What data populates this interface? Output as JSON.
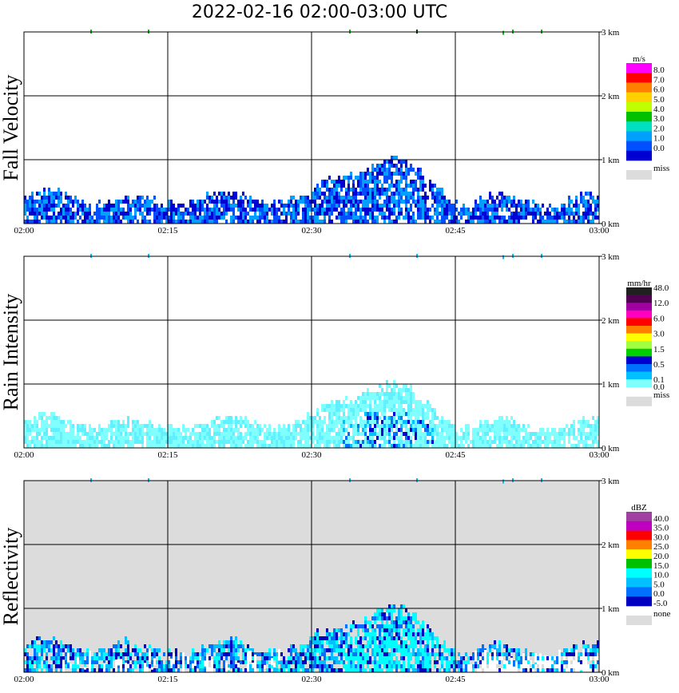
{
  "header": {
    "title": "2022-02-16   02:00-03:00 UTC"
  },
  "chart_data": [
    {
      "type": "heatmap",
      "title": "Fall Velocity",
      "x_ticks": [
        "02:00",
        "02:15",
        "02:30",
        "02:45",
        "03:00"
      ],
      "y_ticks": [
        "0 km",
        "1 km",
        "2 km",
        "3 km"
      ],
      "ylim": [
        0,
        3.0
      ],
      "background": "#ffffff",
      "unit": "m/s",
      "colorbar": {
        "labels": [
          "8.0",
          "7.0",
          "6.0",
          "5.0",
          "4.0",
          "3.0",
          "2.0",
          "1.0",
          "0.0"
        ],
        "colors": [
          "#ff00ff",
          "#ff0000",
          "#ff8000",
          "#ffd000",
          "#c0ff00",
          "#00c000",
          "#00e0c0",
          "#00a0ff",
          "#0050ff",
          "#0000d0"
        ],
        "missing_label": "miss",
        "missing_color": "#dcdcdc"
      },
      "layers": [
        {
          "name": "base",
          "colors": [
            "#0000d0",
            "#0050ff",
            "#00a0ff"
          ],
          "density": 0.8
        }
      ],
      "specks": [
        {
          "time": "02:07",
          "height": 3.0,
          "color": "#00c000"
        },
        {
          "time": "02:13",
          "height": 3.0,
          "color": "#00c000"
        },
        {
          "time": "02:34",
          "height": 3.0,
          "color": "#00c000"
        },
        {
          "time": "02:41",
          "height": 3.0,
          "color": "#004000"
        },
        {
          "time": "02:50",
          "height": 2.98,
          "color": "#00c000"
        },
        {
          "time": "02:51",
          "height": 3.0,
          "color": "#00c000"
        },
        {
          "time": "02:54",
          "height": 3.0,
          "color": "#00c000"
        }
      ]
    },
    {
      "type": "heatmap",
      "title": "Rain Intensity",
      "x_ticks": [
        "02:00",
        "02:15",
        "02:30",
        "02:45",
        "03:00"
      ],
      "y_ticks": [
        "0 km",
        "1 km",
        "2 km",
        "3 km"
      ],
      "ylim": [
        0,
        3.0
      ],
      "background": "#ffffff",
      "unit": "mm/hr",
      "colorbar": {
        "labels": [
          "48.0",
          "12.0",
          "6.0",
          "3.0",
          "1.5",
          "0.5",
          "0.1",
          "0.0"
        ],
        "colors": [
          "#202020",
          "#500050",
          "#a000a0",
          "#ff00c0",
          "#ff0000",
          "#ff8000",
          "#ffff00",
          "#a0ff40",
          "#00d000",
          "#0000d0",
          "#0070ff",
          "#00c0ff",
          "#80ffff"
        ],
        "missing_label": "miss",
        "missing_color": "#dcdcdc"
      },
      "layers": [
        {
          "name": "base",
          "colors": [
            "#80ffff",
            "#80ffff",
            "#60f0ff"
          ],
          "density": 0.85
        }
      ],
      "specks": [
        {
          "time": "02:07",
          "height": 3.0,
          "color": "#00c0ff"
        },
        {
          "time": "02:13",
          "height": 3.0,
          "color": "#00c0ff"
        },
        {
          "time": "02:34",
          "height": 3.0,
          "color": "#00c0ff"
        },
        {
          "time": "02:41",
          "height": 3.0,
          "color": "#00c0ff"
        },
        {
          "time": "02:50",
          "height": 2.98,
          "color": "#00c0ff"
        },
        {
          "time": "02:51",
          "height": 3.0,
          "color": "#00c0ff"
        },
        {
          "time": "02:54",
          "height": 3.0,
          "color": "#00c0ff"
        }
      ]
    },
    {
      "type": "heatmap",
      "title": "Reflectivity",
      "x_ticks": [
        "02:00",
        "02:15",
        "02:30",
        "02:45",
        "03:00"
      ],
      "y_ticks": [
        "0 km",
        "1 km",
        "2 km",
        "3 km"
      ],
      "ylim": [
        0,
        3.0
      ],
      "background": "#dcdcdc",
      "unit": "dBZ",
      "colorbar": {
        "labels": [
          "40.0",
          "35.0",
          "30.0",
          "25.0",
          "20.0",
          "15.0",
          "10.0",
          "5.0",
          "0.0",
          "-5.0"
        ],
        "colors": [
          "#a040a0",
          "#c000c0",
          "#ff0000",
          "#ff8000",
          "#ffff00",
          "#00c000",
          "#00ffff",
          "#00c0ff",
          "#0070ff",
          "#0000c0"
        ],
        "missing_label": "none",
        "missing_color": "#dcdcdc"
      },
      "layers": [
        {
          "name": "base",
          "colors": [
            "#0000c0",
            "#0070ff",
            "#00c0ff",
            "#00ffff"
          ],
          "density": 0.8
        }
      ],
      "specks": [
        {
          "time": "02:07",
          "height": 3.0,
          "color": "#00c0ff"
        },
        {
          "time": "02:13",
          "height": 3.0,
          "color": "#00c0ff"
        },
        {
          "time": "02:34",
          "height": 3.0,
          "color": "#00c0ff"
        },
        {
          "time": "02:41",
          "height": 3.0,
          "color": "#00c0ff"
        },
        {
          "time": "02:50",
          "height": 2.98,
          "color": "#00c0ff"
        },
        {
          "time": "02:51",
          "height": 3.0,
          "color": "#00c0ff"
        },
        {
          "time": "02:54",
          "height": 3.0,
          "color": "#00c0ff"
        }
      ]
    }
  ]
}
